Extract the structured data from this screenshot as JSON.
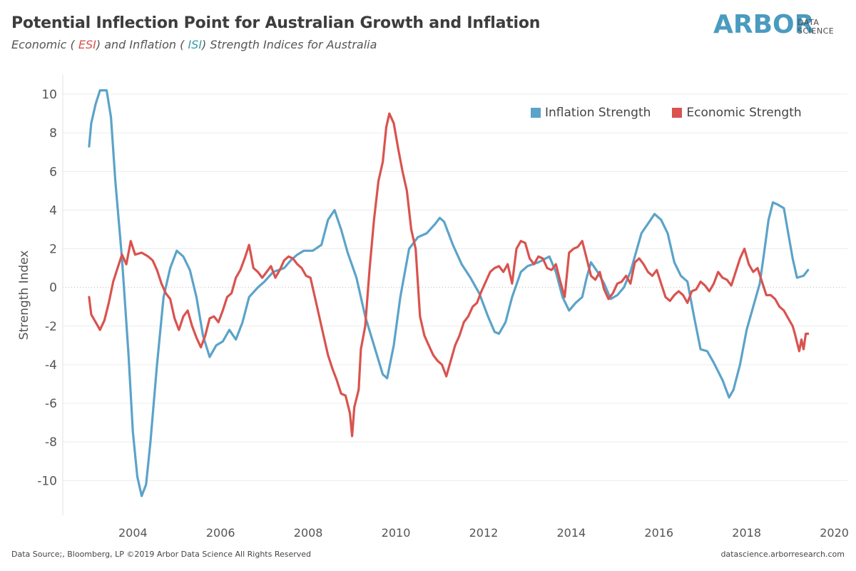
{
  "header": {
    "title": "Potential Inflection Point for Australian Growth and Inflation",
    "subtitle_part1": "Economic ( ",
    "subtitle_esi": "ESI",
    "subtitle_part2": ") and Inflation ( ",
    "subtitle_isi": "ISI",
    "subtitle_part3": ") Strength Indices for Australia"
  },
  "logo": {
    "main": "ARBOR",
    "line1": "DATA",
    "line2": "SCIENCE"
  },
  "footer": {
    "source": "Data Source;, Bloomberg, LP   ©2019 Arbor Data Science All Rights Reserved",
    "url": "datascience.arborresearch.com"
  },
  "colors": {
    "inflation": "#5ba3c9",
    "economic": "#d9534f",
    "grid": "#ececec"
  },
  "chart_data": {
    "type": "line",
    "xlabel": "",
    "ylabel": "Strength Index",
    "xlim": [
      2002.4,
      2020.3
    ],
    "ylim": [
      -11.8,
      11
    ],
    "x_ticks": [
      2004,
      2006,
      2008,
      2010,
      2012,
      2014,
      2016,
      2018,
      2020
    ],
    "y_ticks": [
      10,
      8,
      6,
      4,
      2,
      0,
      -2,
      -4,
      -6,
      -8,
      -10
    ],
    "grid": true,
    "legend_position": "top-right",
    "series": [
      {
        "name": "Inflation Strength",
        "points": [
          [
            2003.0,
            7.3
          ],
          [
            2003.05,
            8.5
          ],
          [
            2003.15,
            9.5
          ],
          [
            2003.25,
            10.2
          ],
          [
            2003.4,
            10.2
          ],
          [
            2003.5,
            8.8
          ],
          [
            2003.6,
            5.5
          ],
          [
            2003.75,
            1.5
          ],
          [
            2003.9,
            -3.5
          ],
          [
            2004.0,
            -7.5
          ],
          [
            2004.1,
            -9.8
          ],
          [
            2004.2,
            -10.8
          ],
          [
            2004.3,
            -10.2
          ],
          [
            2004.4,
            -8.0
          ],
          [
            2004.55,
            -4.0
          ],
          [
            2004.7,
            -0.5
          ],
          [
            2004.85,
            1.0
          ],
          [
            2005.0,
            1.9
          ],
          [
            2005.15,
            1.6
          ],
          [
            2005.3,
            0.9
          ],
          [
            2005.45,
            -0.5
          ],
          [
            2005.6,
            -2.5
          ],
          [
            2005.75,
            -3.6
          ],
          [
            2005.9,
            -3.0
          ],
          [
            2006.05,
            -2.8
          ],
          [
            2006.2,
            -2.2
          ],
          [
            2006.35,
            -2.7
          ],
          [
            2006.5,
            -1.8
          ],
          [
            2006.65,
            -0.5
          ],
          [
            2006.85,
            0.0
          ],
          [
            2007.0,
            0.3
          ],
          [
            2007.2,
            0.8
          ],
          [
            2007.45,
            1.0
          ],
          [
            2007.6,
            1.4
          ],
          [
            2007.75,
            1.7
          ],
          [
            2007.9,
            1.9
          ],
          [
            2008.1,
            1.9
          ],
          [
            2008.3,
            2.2
          ],
          [
            2008.45,
            3.5
          ],
          [
            2008.6,
            4.0
          ],
          [
            2008.75,
            3.0
          ],
          [
            2008.9,
            1.8
          ],
          [
            2009.1,
            0.5
          ],
          [
            2009.3,
            -1.5
          ],
          [
            2009.5,
            -3.0
          ],
          [
            2009.7,
            -4.5
          ],
          [
            2009.8,
            -4.7
          ],
          [
            2009.95,
            -3.0
          ],
          [
            2010.1,
            -0.5
          ],
          [
            2010.3,
            2.0
          ],
          [
            2010.5,
            2.6
          ],
          [
            2010.7,
            2.8
          ],
          [
            2010.9,
            3.3
          ],
          [
            2011.0,
            3.6
          ],
          [
            2011.1,
            3.4
          ],
          [
            2011.3,
            2.2
          ],
          [
            2011.5,
            1.2
          ],
          [
            2011.7,
            0.5
          ],
          [
            2011.9,
            -0.3
          ],
          [
            2012.1,
            -1.5
          ],
          [
            2012.25,
            -2.3
          ],
          [
            2012.35,
            -2.4
          ],
          [
            2012.5,
            -1.8
          ],
          [
            2012.65,
            -0.5
          ],
          [
            2012.85,
            0.8
          ],
          [
            2013.0,
            1.1
          ],
          [
            2013.25,
            1.3
          ],
          [
            2013.5,
            1.6
          ],
          [
            2013.65,
            0.8
          ],
          [
            2013.8,
            -0.5
          ],
          [
            2013.95,
            -1.2
          ],
          [
            2014.1,
            -0.8
          ],
          [
            2014.25,
            -0.5
          ],
          [
            2014.35,
            0.5
          ],
          [
            2014.45,
            1.3
          ],
          [
            2014.6,
            0.8
          ],
          [
            2014.75,
            0.2
          ],
          [
            2014.9,
            -0.6
          ],
          [
            2015.05,
            -0.4
          ],
          [
            2015.2,
            0.0
          ],
          [
            2015.35,
            0.8
          ],
          [
            2015.5,
            2.0
          ],
          [
            2015.6,
            2.8
          ],
          [
            2015.75,
            3.3
          ],
          [
            2015.9,
            3.8
          ],
          [
            2016.05,
            3.5
          ],
          [
            2016.2,
            2.8
          ],
          [
            2016.35,
            1.3
          ],
          [
            2016.5,
            0.6
          ],
          [
            2016.65,
            0.3
          ],
          [
            2016.8,
            -1.5
          ],
          [
            2016.95,
            -3.2
          ],
          [
            2017.1,
            -3.3
          ],
          [
            2017.25,
            -3.9
          ],
          [
            2017.45,
            -4.8
          ],
          [
            2017.6,
            -5.7
          ],
          [
            2017.7,
            -5.3
          ],
          [
            2017.85,
            -4.0
          ],
          [
            2018.0,
            -2.2
          ],
          [
            2018.15,
            -1.0
          ],
          [
            2018.3,
            0.2
          ],
          [
            2018.4,
            1.8
          ],
          [
            2018.5,
            3.5
          ],
          [
            2018.6,
            4.4
          ],
          [
            2018.7,
            4.3
          ],
          [
            2018.85,
            4.1
          ],
          [
            2018.95,
            2.8
          ],
          [
            2019.05,
            1.5
          ],
          [
            2019.15,
            0.5
          ],
          [
            2019.3,
            0.6
          ],
          [
            2019.4,
            0.9
          ]
        ]
      },
      {
        "name": "Economic Strength",
        "points": [
          [
            2003.0,
            -0.5
          ],
          [
            2003.05,
            -1.4
          ],
          [
            2003.15,
            -1.8
          ],
          [
            2003.25,
            -2.2
          ],
          [
            2003.35,
            -1.7
          ],
          [
            2003.45,
            -0.8
          ],
          [
            2003.55,
            0.3
          ],
          [
            2003.65,
            1.0
          ],
          [
            2003.75,
            1.7
          ],
          [
            2003.85,
            1.2
          ],
          [
            2003.95,
            2.4
          ],
          [
            2004.05,
            1.7
          ],
          [
            2004.2,
            1.8
          ],
          [
            2004.35,
            1.6
          ],
          [
            2004.45,
            1.4
          ],
          [
            2004.55,
            0.9
          ],
          [
            2004.65,
            0.2
          ],
          [
            2004.75,
            -0.3
          ],
          [
            2004.85,
            -0.6
          ],
          [
            2004.95,
            -1.6
          ],
          [
            2005.05,
            -2.2
          ],
          [
            2005.15,
            -1.5
          ],
          [
            2005.25,
            -1.2
          ],
          [
            2005.35,
            -2.0
          ],
          [
            2005.45,
            -2.6
          ],
          [
            2005.55,
            -3.1
          ],
          [
            2005.65,
            -2.5
          ],
          [
            2005.75,
            -1.6
          ],
          [
            2005.85,
            -1.5
          ],
          [
            2005.95,
            -1.8
          ],
          [
            2006.05,
            -1.2
          ],
          [
            2006.15,
            -0.5
          ],
          [
            2006.25,
            -0.3
          ],
          [
            2006.35,
            0.5
          ],
          [
            2006.45,
            0.9
          ],
          [
            2006.55,
            1.5
          ],
          [
            2006.65,
            2.2
          ],
          [
            2006.75,
            1.0
          ],
          [
            2006.85,
            0.8
          ],
          [
            2006.95,
            0.5
          ],
          [
            2007.05,
            0.8
          ],
          [
            2007.15,
            1.1
          ],
          [
            2007.25,
            0.5
          ],
          [
            2007.35,
            0.9
          ],
          [
            2007.45,
            1.4
          ],
          [
            2007.55,
            1.6
          ],
          [
            2007.65,
            1.5
          ],
          [
            2007.75,
            1.2
          ],
          [
            2007.85,
            1.0
          ],
          [
            2007.95,
            0.6
          ],
          [
            2008.05,
            0.5
          ],
          [
            2008.15,
            -0.5
          ],
          [
            2008.25,
            -1.5
          ],
          [
            2008.35,
            -2.5
          ],
          [
            2008.45,
            -3.5
          ],
          [
            2008.55,
            -4.2
          ],
          [
            2008.65,
            -4.8
          ],
          [
            2008.75,
            -5.5
          ],
          [
            2008.85,
            -5.6
          ],
          [
            2008.95,
            -6.5
          ],
          [
            2009.0,
            -7.7
          ],
          [
            2009.05,
            -6.2
          ],
          [
            2009.15,
            -5.3
          ],
          [
            2009.2,
            -3.2
          ],
          [
            2009.3,
            -2.0
          ],
          [
            2009.4,
            1.0
          ],
          [
            2009.5,
            3.5
          ],
          [
            2009.6,
            5.5
          ],
          [
            2009.7,
            6.5
          ],
          [
            2009.78,
            8.3
          ],
          [
            2009.85,
            9.0
          ],
          [
            2009.95,
            8.5
          ],
          [
            2010.05,
            7.2
          ],
          [
            2010.15,
            6.0
          ],
          [
            2010.25,
            5.0
          ],
          [
            2010.35,
            3.0
          ],
          [
            2010.45,
            2.0
          ],
          [
            2010.55,
            -1.5
          ],
          [
            2010.65,
            -2.5
          ],
          [
            2010.75,
            -3.0
          ],
          [
            2010.85,
            -3.5
          ],
          [
            2010.95,
            -3.8
          ],
          [
            2011.05,
            -4.0
          ],
          [
            2011.15,
            -4.6
          ],
          [
            2011.25,
            -3.8
          ],
          [
            2011.35,
            -3.0
          ],
          [
            2011.45,
            -2.5
          ],
          [
            2011.55,
            -1.8
          ],
          [
            2011.65,
            -1.5
          ],
          [
            2011.75,
            -1.0
          ],
          [
            2011.85,
            -0.8
          ],
          [
            2011.95,
            -0.2
          ],
          [
            2012.05,
            0.3
          ],
          [
            2012.15,
            0.8
          ],
          [
            2012.25,
            1.0
          ],
          [
            2012.35,
            1.1
          ],
          [
            2012.45,
            0.8
          ],
          [
            2012.55,
            1.2
          ],
          [
            2012.65,
            0.2
          ],
          [
            2012.75,
            2.0
          ],
          [
            2012.85,
            2.4
          ],
          [
            2012.95,
            2.3
          ],
          [
            2013.05,
            1.5
          ],
          [
            2013.15,
            1.2
          ],
          [
            2013.25,
            1.6
          ],
          [
            2013.35,
            1.5
          ],
          [
            2013.45,
            1.0
          ],
          [
            2013.55,
            0.9
          ],
          [
            2013.65,
            1.2
          ],
          [
            2013.75,
            0.3
          ],
          [
            2013.85,
            -0.5
          ],
          [
            2013.95,
            1.8
          ],
          [
            2014.05,
            2.0
          ],
          [
            2014.15,
            2.1
          ],
          [
            2014.25,
            2.4
          ],
          [
            2014.35,
            1.5
          ],
          [
            2014.45,
            0.6
          ],
          [
            2014.55,
            0.4
          ],
          [
            2014.65,
            0.8
          ],
          [
            2014.75,
            -0.1
          ],
          [
            2014.85,
            -0.6
          ],
          [
            2014.95,
            -0.3
          ],
          [
            2015.05,
            0.2
          ],
          [
            2015.15,
            0.3
          ],
          [
            2015.25,
            0.6
          ],
          [
            2015.35,
            0.2
          ],
          [
            2015.45,
            1.3
          ],
          [
            2015.55,
            1.5
          ],
          [
            2015.65,
            1.2
          ],
          [
            2015.75,
            0.8
          ],
          [
            2015.85,
            0.6
          ],
          [
            2015.95,
            0.9
          ],
          [
            2016.05,
            0.2
          ],
          [
            2016.15,
            -0.5
          ],
          [
            2016.25,
            -0.7
          ],
          [
            2016.35,
            -0.4
          ],
          [
            2016.45,
            -0.2
          ],
          [
            2016.55,
            -0.4
          ],
          [
            2016.65,
            -0.8
          ],
          [
            2016.75,
            -0.2
          ],
          [
            2016.85,
            -0.1
          ],
          [
            2016.95,
            0.3
          ],
          [
            2017.05,
            0.1
          ],
          [
            2017.15,
            -0.2
          ],
          [
            2017.25,
            0.2
          ],
          [
            2017.35,
            0.8
          ],
          [
            2017.45,
            0.5
          ],
          [
            2017.55,
            0.4
          ],
          [
            2017.65,
            0.1
          ],
          [
            2017.75,
            0.8
          ],
          [
            2017.85,
            1.5
          ],
          [
            2017.95,
            2.0
          ],
          [
            2018.05,
            1.2
          ],
          [
            2018.15,
            0.8
          ],
          [
            2018.25,
            1.0
          ],
          [
            2018.35,
            0.3
          ],
          [
            2018.45,
            -0.4
          ],
          [
            2018.55,
            -0.4
          ],
          [
            2018.65,
            -0.6
          ],
          [
            2018.75,
            -1.0
          ],
          [
            2018.85,
            -1.2
          ],
          [
            2018.95,
            -1.6
          ],
          [
            2019.05,
            -2.0
          ],
          [
            2019.1,
            -2.4
          ],
          [
            2019.2,
            -3.3
          ],
          [
            2019.25,
            -2.7
          ],
          [
            2019.3,
            -3.2
          ],
          [
            2019.35,
            -2.4
          ],
          [
            2019.4,
            -2.4
          ]
        ]
      }
    ]
  }
}
